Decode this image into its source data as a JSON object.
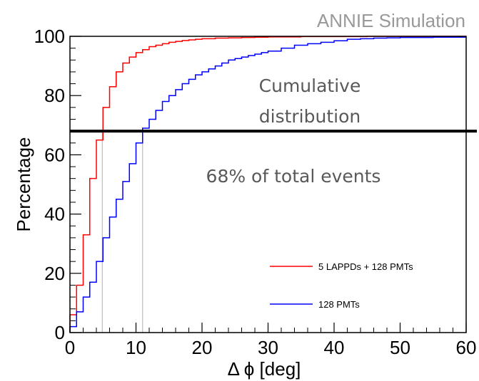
{
  "chart_data": {
    "type": "line",
    "step": true,
    "watermark": "ANNIE Simulation",
    "xlabel": "Δ ϕ [deg]",
    "ylabel": "Percentage",
    "xlim": [
      0,
      60
    ],
    "ylim": [
      0,
      100
    ],
    "x_ticks": [
      0,
      10,
      20,
      30,
      40,
      50,
      60
    ],
    "y_ticks": [
      0,
      20,
      40,
      60,
      80,
      100
    ],
    "grid": false,
    "legend_position": "bottom-right",
    "annotations": {
      "cumulative_line1": "Cumulative",
      "cumulative_line2": "distribution",
      "threshold_label": "68% of total events"
    },
    "threshold": {
      "y": 68
    },
    "crossings": [
      4.9,
      11
    ],
    "series": [
      {
        "name": "5 LAPPDs + 128 PMTs",
        "color": "#ff0000",
        "bin_edges": [
          0,
          1,
          2,
          3,
          4,
          5,
          6,
          7,
          8,
          9,
          10,
          11,
          12,
          13,
          14,
          15,
          16,
          17,
          18,
          19,
          20,
          22,
          24,
          26,
          28,
          30,
          35,
          40,
          45,
          50,
          60
        ],
        "values": [
          6,
          16,
          33,
          52,
          65,
          76,
          83,
          88,
          91,
          93,
          94.5,
          95.5,
          96.5,
          97,
          97.5,
          98,
          98.3,
          98.6,
          98.8,
          99,
          99.2,
          99.4,
          99.5,
          99.6,
          99.7,
          99.8,
          99.9,
          99.9,
          100,
          100
        ]
      },
      {
        "name": "128 PMTs",
        "color": "#0000ff",
        "bin_edges": [
          0,
          1,
          2,
          3,
          4,
          5,
          6,
          7,
          8,
          9,
          10,
          11,
          12,
          13,
          14,
          15,
          16,
          17,
          18,
          19,
          20,
          21,
          22,
          23,
          24,
          25,
          26,
          27,
          28,
          29,
          30,
          32,
          34,
          36,
          38,
          40,
          42,
          44,
          46,
          48,
          50,
          55,
          60
        ],
        "values": [
          2,
          7,
          12,
          17,
          24,
          32,
          39,
          45,
          51,
          57,
          64,
          69,
          72,
          75,
          78,
          80,
          82,
          84,
          85.5,
          87,
          88,
          89,
          90,
          91,
          92,
          92.5,
          93,
          93.5,
          94,
          94.5,
          95,
          96,
          97,
          97.5,
          98,
          98.5,
          99,
          99.2,
          99.4,
          99.5,
          99.6,
          99.7
        ]
      }
    ]
  }
}
